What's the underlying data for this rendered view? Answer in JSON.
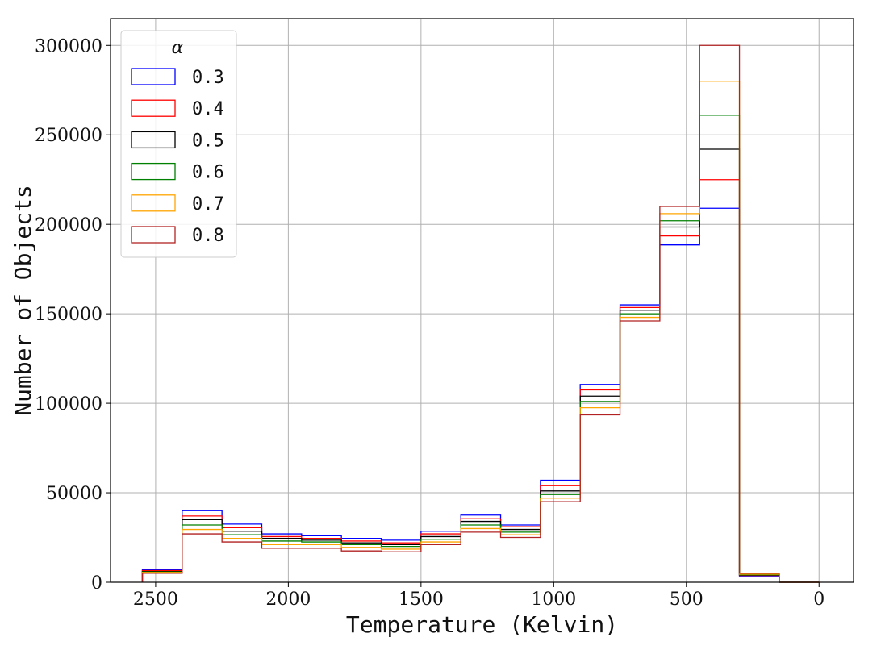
{
  "chart_data": {
    "type": "histogram-step",
    "title": "",
    "xlabel": "Temperature (Kelvin)",
    "ylabel": "Number of Objects",
    "x_inverted": true,
    "xlim": [
      2670,
      -130
    ],
    "ylim": [
      0,
      315000
    ],
    "xticks": [
      2500,
      2000,
      1500,
      1000,
      500,
      0
    ],
    "yticks": [
      0,
      50000,
      100000,
      150000,
      200000,
      250000,
      300000
    ],
    "grid": true,
    "legend": {
      "title": "α",
      "placement": "top-left"
    },
    "bin_edges": [
      2550,
      2400,
      2250,
      2100,
      1950,
      1800,
      1650,
      1500,
      1350,
      1200,
      1050,
      900,
      750,
      600,
      450,
      300,
      150,
      0
    ],
    "series": [
      {
        "name": "0.3",
        "color": "#0000ff",
        "values": [
          7000,
          40000,
          32500,
          27000,
          26000,
          24500,
          23500,
          28500,
          37500,
          32000,
          57000,
          110500,
          155000,
          188500,
          209000,
          3500,
          0
        ]
      },
      {
        "name": "0.4",
        "color": "#ff0000",
        "values": [
          6500,
          37000,
          30500,
          25500,
          24500,
          23000,
          22000,
          27000,
          35500,
          31000,
          54000,
          107500,
          153500,
          193500,
          225000,
          3800,
          0
        ]
      },
      {
        "name": "0.5",
        "color": "#000000",
        "values": [
          6000,
          35000,
          28500,
          24500,
          23500,
          22000,
          21000,
          25500,
          34000,
          29500,
          51000,
          104000,
          152000,
          198500,
          242000,
          4000,
          0
        ]
      },
      {
        "name": "0.6",
        "color": "#008000",
        "values": [
          5800,
          32000,
          26500,
          23000,
          22500,
          21000,
          20000,
          24000,
          32000,
          28000,
          49000,
          101000,
          150000,
          202000,
          261000,
          4200,
          0
        ]
      },
      {
        "name": "0.7",
        "color": "#ffa500",
        "values": [
          5500,
          29500,
          24500,
          21000,
          21000,
          19500,
          18500,
          22500,
          30000,
          26500,
          47000,
          97500,
          148000,
          206000,
          280000,
          4500,
          0
        ]
      },
      {
        "name": "0.8",
        "color": "#b22222",
        "values": [
          5000,
          27000,
          22500,
          19000,
          19000,
          17500,
          17000,
          21000,
          28000,
          25000,
          45000,
          93500,
          146000,
          210000,
          300000,
          5000,
          0
        ]
      }
    ]
  }
}
